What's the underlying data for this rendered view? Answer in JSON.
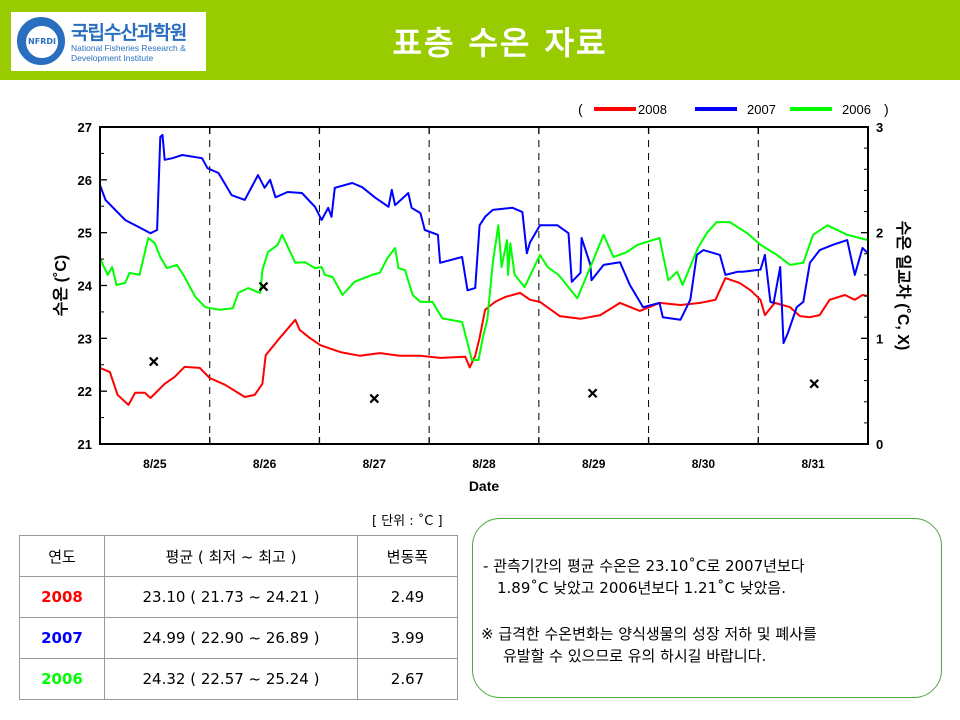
{
  "header": {
    "title": "표층 수온 자료",
    "logo_ko": "국립수산과학원",
    "logo_en_1": "National Fisheries Research &",
    "logo_en_2": "Development Institute",
    "logo_seal": "NFRDI",
    "bg": "#99cc00"
  },
  "chart_data": {
    "type": "line",
    "xlabel": "Date",
    "ylabel": "수온 (˚C)",
    "y2label": "수온 일교차 (˚C, X)",
    "x_tick_labels": [
      "8/25",
      "8/26",
      "8/27",
      "8/28",
      "8/29",
      "8/30",
      "8/31"
    ],
    "x_unit": "days since 8/25 00:00",
    "xlim": [
      0,
      7
    ],
    "ylim": [
      21,
      27
    ],
    "y_ticks": [
      "21",
      "22",
      "23",
      "24",
      "25",
      "26",
      "27"
    ],
    "y2lim": [
      0,
      3
    ],
    "y2_ticks": [
      "0",
      "1",
      "2",
      "3"
    ],
    "legend": {
      "open": "(",
      "close": ")",
      "placement": "top-right"
    },
    "series": [
      {
        "name": "2008",
        "color": "#ff0000",
        "x": [
          0,
          0.09,
          0.16,
          0.26,
          0.32,
          0.41,
          0.46,
          0.59,
          0.68,
          0.77,
          0.91,
          1.0,
          1.14,
          1.32,
          1.41,
          1.48,
          1.51,
          1.64,
          1.78,
          1.82,
          1.91,
          2.01,
          2.19,
          2.37,
          2.55,
          2.73,
          2.92,
          3.1,
          3.33,
          3.37,
          3.42,
          3.46,
          3.51,
          3.6,
          3.69,
          3.83,
          3.92,
          4.01,
          4.19,
          4.38,
          4.56,
          4.74,
          4.92,
          5.1,
          5.29,
          5.47,
          5.61,
          5.7,
          5.83,
          5.93,
          6.02,
          6.06,
          6.15,
          6.29,
          6.38,
          6.47,
          6.56,
          6.65,
          6.79,
          6.88,
          6.95,
          7.0
        ],
        "y": [
          22.44,
          22.36,
          21.93,
          21.74,
          21.97,
          21.97,
          21.87,
          22.14,
          22.27,
          22.46,
          22.44,
          22.25,
          22.12,
          21.89,
          21.93,
          22.14,
          22.68,
          23.01,
          23.35,
          23.16,
          23.01,
          22.87,
          22.74,
          22.67,
          22.72,
          22.67,
          22.67,
          22.63,
          22.65,
          22.45,
          22.67,
          23.01,
          23.54,
          23.69,
          23.78,
          23.86,
          23.73,
          23.69,
          23.42,
          23.37,
          23.44,
          23.67,
          23.52,
          23.67,
          23.63,
          23.67,
          23.73,
          24.14,
          24.05,
          23.91,
          23.73,
          23.44,
          23.67,
          23.59,
          23.42,
          23.4,
          23.44,
          23.73,
          23.82,
          23.73,
          23.82,
          23.8
        ]
      },
      {
        "name": "2007",
        "color": "#0000ff",
        "x": [
          0,
          0.05,
          0.23,
          0.35,
          0.46,
          0.52,
          0.55,
          0.57,
          0.59,
          0.66,
          0.75,
          0.93,
          0.98,
          1.08,
          1.2,
          1.32,
          1.44,
          1.5,
          1.55,
          1.6,
          1.71,
          1.84,
          1.96,
          2.02,
          2.08,
          2.11,
          2.14,
          2.3,
          2.39,
          2.51,
          2.63,
          2.66,
          2.69,
          2.81,
          2.84,
          2.92,
          2.96,
          3.08,
          3.1,
          3.3,
          3.35,
          3.42,
          3.46,
          3.51,
          3.58,
          3.76,
          3.85,
          3.89,
          3.92,
          4.01,
          4.17,
          4.27,
          4.3,
          4.38,
          4.39,
          4.47,
          4.48,
          4.59,
          4.74,
          4.83,
          4.95,
          5.1,
          5.13,
          5.29,
          5.38,
          5.44,
          5.5,
          5.65,
          5.7,
          5.81,
          5.86,
          6.02,
          6.06,
          6.11,
          6.14,
          6.2,
          6.23,
          6.27,
          6.35,
          6.41,
          6.47,
          6.56,
          6.68,
          6.81,
          6.88,
          6.95,
          7.0
        ],
        "y": [
          25.9,
          25.62,
          25.24,
          25.11,
          24.99,
          25.05,
          26.81,
          26.85,
          26.38,
          26.41,
          26.47,
          26.41,
          26.22,
          26.13,
          25.71,
          25.62,
          26.09,
          25.85,
          26.0,
          25.67,
          25.77,
          25.75,
          25.49,
          25.24,
          25.47,
          25.3,
          25.85,
          25.94,
          25.86,
          25.66,
          25.49,
          25.81,
          25.52,
          25.75,
          25.47,
          25.37,
          25.05,
          24.96,
          24.43,
          24.54,
          23.91,
          23.95,
          25.14,
          25.3,
          25.43,
          25.47,
          25.39,
          24.61,
          24.82,
          25.14,
          25.14,
          24.99,
          24.07,
          24.24,
          24.9,
          24.39,
          24.1,
          24.39,
          24.44,
          24.01,
          23.59,
          23.67,
          23.4,
          23.35,
          23.73,
          24.58,
          24.67,
          24.58,
          24.2,
          24.26,
          24.26,
          24.3,
          24.58,
          23.69,
          23.67,
          24.35,
          22.91,
          23.1,
          23.59,
          23.69,
          24.43,
          24.67,
          24.77,
          24.86,
          24.2,
          24.71,
          24.61
        ]
      },
      {
        "name": "2006",
        "color": "#00ff00",
        "x": [
          0,
          0.07,
          0.11,
          0.15,
          0.23,
          0.27,
          0.36,
          0.44,
          0.5,
          0.55,
          0.61,
          0.7,
          0.76,
          0.87,
          0.96,
          1.09,
          1.21,
          1.26,
          1.35,
          1.46,
          1.48,
          1.53,
          1.62,
          1.66,
          1.78,
          1.87,
          1.96,
          2.02,
          2.05,
          2.12,
          2.21,
          2.32,
          2.48,
          2.55,
          2.62,
          2.69,
          2.72,
          2.78,
          2.85,
          2.92,
          3.03,
          3.12,
          3.3,
          3.39,
          3.45,
          3.49,
          3.53,
          3.58,
          3.63,
          3.66,
          3.71,
          3.72,
          3.74,
          3.78,
          3.87,
          4.01,
          4.08,
          4.18,
          4.35,
          4.47,
          4.59,
          4.68,
          4.8,
          4.9,
          5.1,
          5.18,
          5.26,
          5.31,
          5.45,
          5.53,
          5.62,
          5.74,
          5.9,
          6.02,
          6.17,
          6.29,
          6.41,
          6.5,
          6.63,
          6.81,
          7.0
        ],
        "y": [
          24.52,
          24.2,
          24.35,
          24.01,
          24.05,
          24.24,
          24.2,
          24.9,
          24.8,
          24.54,
          24.33,
          24.39,
          24.2,
          23.78,
          23.59,
          23.54,
          23.57,
          23.86,
          23.95,
          23.86,
          24.29,
          24.63,
          24.77,
          24.96,
          24.43,
          24.44,
          24.33,
          24.35,
          24.2,
          24.16,
          23.82,
          24.07,
          24.2,
          24.24,
          24.52,
          24.71,
          24.33,
          24.29,
          23.82,
          23.69,
          23.69,
          23.38,
          23.31,
          22.59,
          22.59,
          23.02,
          23.35,
          24.43,
          25.14,
          24.35,
          24.86,
          24.2,
          24.8,
          24.2,
          23.97,
          24.58,
          24.35,
          24.2,
          23.76,
          24.35,
          24.96,
          24.54,
          24.63,
          24.77,
          24.9,
          24.1,
          24.26,
          24.01,
          24.71,
          24.99,
          25.2,
          25.2,
          24.99,
          24.77,
          24.58,
          24.39,
          24.43,
          24.96,
          25.14,
          24.96,
          24.86
        ]
      }
    ],
    "daily_range_markers": {
      "marker": "x",
      "axis": "right",
      "x": [
        0.49,
        1.49,
        2.5,
        4.49,
        6.51
      ],
      "y": [
        0.78,
        1.49,
        0.43,
        0.48,
        0.57
      ]
    }
  },
  "table": {
    "unit_note": "[ 단위 : ˚C ]",
    "headers": [
      "연도",
      "평균 ( 최저 ~ 최고 )",
      "변동폭"
    ],
    "rows": [
      {
        "year": "2008",
        "color": "#ff0000",
        "stats": "23.10 ( 21.73 ~ 24.21 )",
        "range": "2.49"
      },
      {
        "year": "2007",
        "color": "#0000ff",
        "stats": "24.99 ( 22.90 ~ 26.89 )",
        "range": "3.99"
      },
      {
        "year": "2006",
        "color": "#00ff00",
        "stats": "24.32 ( 22.57 ~ 25.24 )",
        "range": "2.67"
      }
    ]
  },
  "note": {
    "line1": "- 관측기간의 평균 수온은 23.10˚C로 2007년보다",
    "line2": "1.89˚C 낮았고 2006년보다 1.21˚C 낮았음.",
    "line3": "※ 급격한 수온변화는 양식생물의 성장 저하 및 폐사를",
    "line4": "유발할 수 있으므로 유의 하시길 바랍니다."
  }
}
